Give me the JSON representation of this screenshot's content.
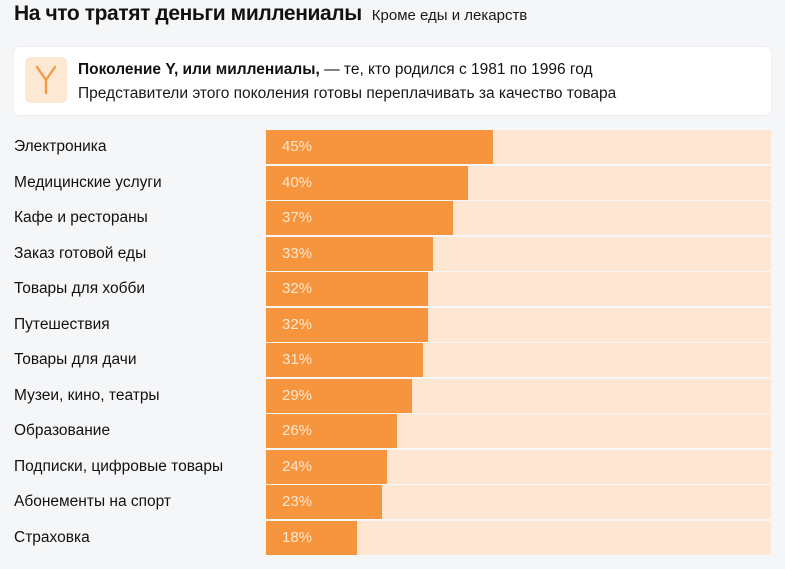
{
  "header": {
    "title": "На что тратят деньги миллениалы",
    "subtitle": "Кроме еды и лекарств"
  },
  "info_card": {
    "icon": "letter-y-icon",
    "icon_letter": "Y",
    "line1_bold": "Поколение Y, или миллениалы,",
    "line1_rest": " — те, кто родился с 1981 по 1996 год",
    "line2": "Представители этого поколения готовы переплачивать за качество товара"
  },
  "colors": {
    "bar": "#f7953f",
    "bar_background": "#fde6d2",
    "value_text": "#fde7cf",
    "icon_background": "#fde9d3",
    "icon_letter": "#f39a45"
  },
  "chart_data": {
    "type": "bar",
    "orientation": "horizontal",
    "title": "На что тратят деньги миллениалы",
    "subtitle": "Кроме еды и лекарств",
    "xlabel": "",
    "ylabel": "",
    "xlim": [
      0,
      100
    ],
    "unit": "%",
    "grid": false,
    "legend": "none",
    "categories": [
      "Электроника",
      "Медицинские услуги",
      "Кафе и рестораны",
      "Заказ готовой еды",
      "Товары для хобби",
      "Путешествия",
      "Товары для дачи",
      "Музеи, кино, театры",
      "Образование",
      "Подписки, цифровые товары",
      "Абонементы на спорт",
      "Страховка"
    ],
    "values": [
      45,
      40,
      37,
      33,
      32,
      32,
      31,
      29,
      26,
      24,
      23,
      18
    ],
    "value_labels": [
      "45%",
      "40%",
      "37%",
      "33%",
      "32%",
      "32%",
      "31%",
      "29%",
      "26%",
      "24%",
      "23%",
      "18%"
    ]
  }
}
